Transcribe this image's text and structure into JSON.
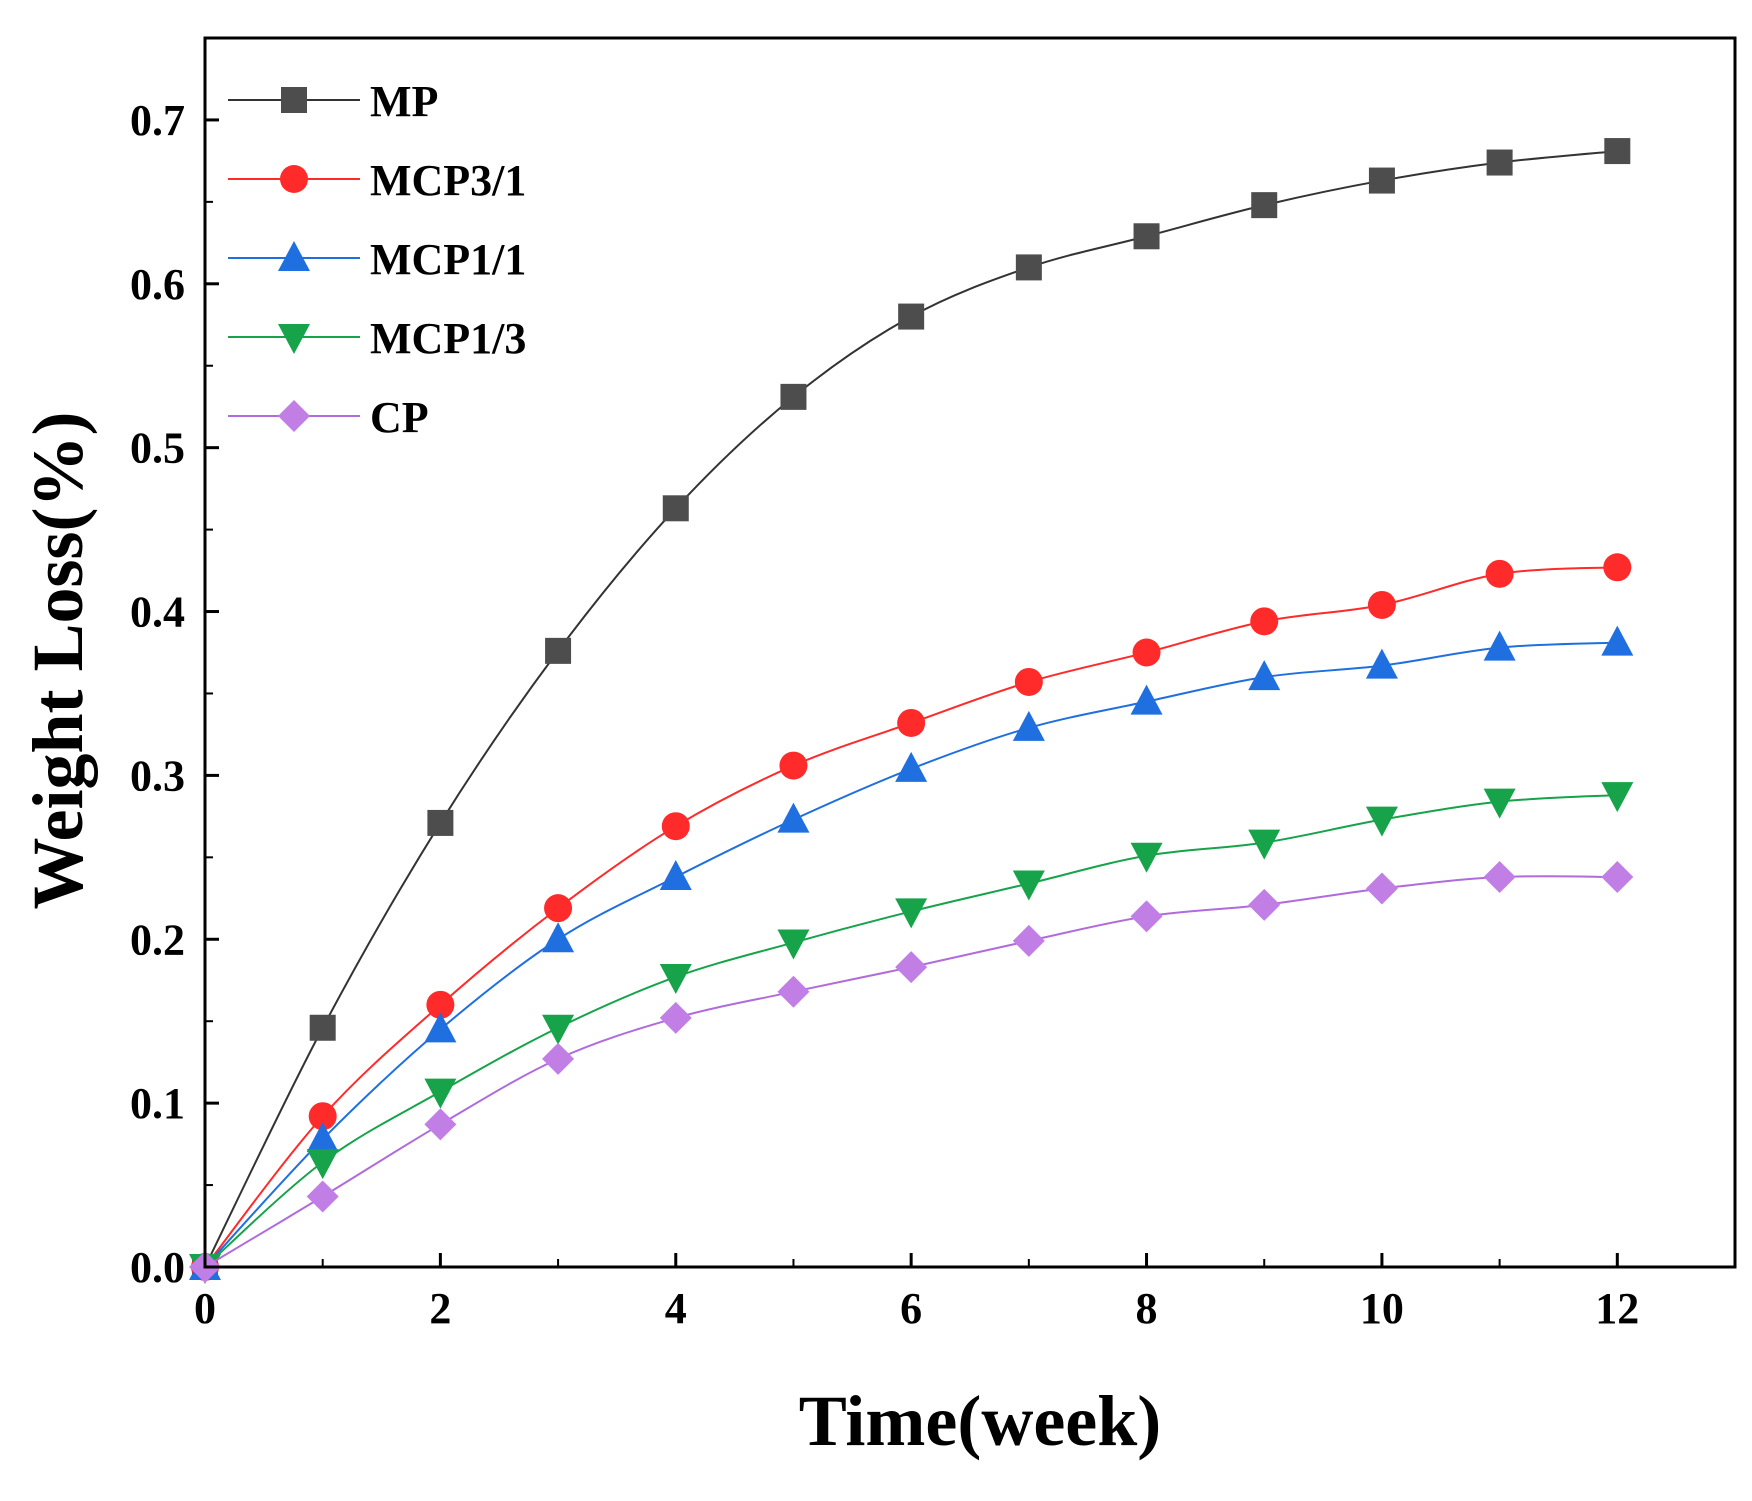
{
  "chart_data": {
    "type": "line",
    "xlabel": "Time(week)",
    "ylabel": "Weight Loss(%)",
    "xlim": [
      0,
      13
    ],
    "ylim": [
      0,
      0.75
    ],
    "xticks": [
      0,
      2,
      4,
      6,
      8,
      10,
      12
    ],
    "xtick_labels": [
      "0",
      "2",
      "4",
      "6",
      "8",
      "10",
      "12"
    ],
    "yticks": [
      0,
      0.1,
      0.2,
      0.3,
      0.4,
      0.5,
      0.6,
      0.7
    ],
    "ytick_labels": [
      "0.0",
      "0.1",
      "0.2",
      "0.3",
      "0.4",
      "0.5",
      "0.6",
      "0.7"
    ],
    "grid": false,
    "legend_position": "top-left",
    "x": [
      0,
      1,
      2,
      3,
      4,
      5,
      6,
      7,
      8,
      9,
      10,
      11,
      12
    ],
    "series": [
      {
        "name": "MP",
        "marker": "square",
        "color": "#4d4d4d",
        "line_color": "#333333",
        "values": [
          0,
          0.146,
          0.271,
          0.376,
          0.463,
          0.531,
          0.58,
          0.61,
          0.629,
          0.648,
          0.663,
          0.674,
          0.681
        ]
      },
      {
        "name": "MCP3/1",
        "marker": "circle",
        "color": "#ff2a2a",
        "line_color": "#ff2a2a",
        "values": [
          0,
          0.092,
          0.16,
          0.219,
          0.269,
          0.306,
          0.332,
          0.357,
          0.375,
          0.394,
          0.404,
          0.423,
          0.427
        ]
      },
      {
        "name": "MCP1/1",
        "marker": "triangle-up",
        "color": "#1f6fe0",
        "line_color": "#1f6fe0",
        "values": [
          0,
          0.078,
          0.145,
          0.2,
          0.238,
          0.273,
          0.304,
          0.329,
          0.345,
          0.36,
          0.367,
          0.378,
          0.381
        ]
      },
      {
        "name": "MCP1/3",
        "marker": "triangle-down",
        "color": "#16a34a",
        "line_color": "#16a34a",
        "values": [
          0,
          0.064,
          0.107,
          0.146,
          0.177,
          0.198,
          0.217,
          0.234,
          0.251,
          0.259,
          0.273,
          0.284,
          0.288
        ]
      },
      {
        "name": "CP",
        "marker": "diamond",
        "color": "#c17fe6",
        "line_color": "#b06bdc",
        "values": [
          0,
          0.043,
          0.087,
          0.127,
          0.152,
          0.168,
          0.183,
          0.199,
          0.214,
          0.221,
          0.231,
          0.238,
          0.238
        ]
      }
    ]
  }
}
